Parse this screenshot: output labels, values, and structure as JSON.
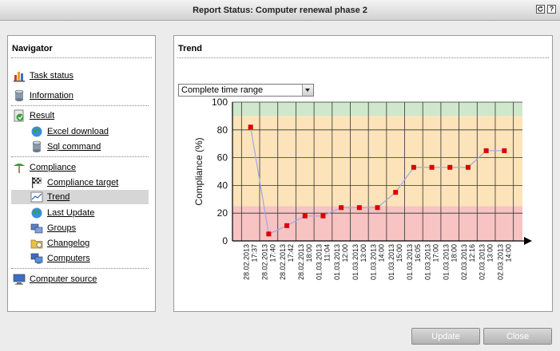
{
  "window": {
    "title": "Report Status: Computer renewal phase 2",
    "refresh_icon": "refresh-icon",
    "help_label": "?"
  },
  "navigator": {
    "title": "Navigator",
    "items": [
      {
        "label": "Task status",
        "icon": "bar-chart-icon"
      },
      {
        "label": "Information",
        "icon": "database-icon"
      },
      {
        "label": "Result",
        "icon": "result-icon"
      },
      {
        "label": "Excel download",
        "icon": "globe-icon"
      },
      {
        "label": "Sql command",
        "icon": "database-icon"
      },
      {
        "label": "Compliance",
        "icon": "compliance-icon"
      },
      {
        "label": "Compliance target",
        "icon": "checkered-flag-icon"
      },
      {
        "label": "Trend",
        "icon": "trend-icon",
        "selected": true
      },
      {
        "label": "Last Update",
        "icon": "globe-icon"
      },
      {
        "label": "Groups",
        "icon": "groups-icon"
      },
      {
        "label": "Changelog",
        "icon": "changelog-icon"
      },
      {
        "label": "Computers",
        "icon": "computers-icon"
      },
      {
        "label": "Computer source",
        "icon": "computer-icon"
      }
    ]
  },
  "trend": {
    "title": "Trend",
    "range_select": {
      "value": "Complete time range"
    }
  },
  "buttons": {
    "update": "Update",
    "close": "Close"
  },
  "colors": {
    "red_zone": "#f7c3c3",
    "orange_zone": "#fde3b9",
    "green_zone": "#cfe8cb",
    "marker": "#dd0000",
    "line": "#a8a8e8"
  },
  "chart_data": {
    "type": "line",
    "ylabel": "Compliance (%)",
    "ylim": [
      0,
      100
    ],
    "yticks": [
      0,
      20,
      40,
      60,
      80,
      100
    ],
    "zones": [
      {
        "from": 0,
        "to": 25,
        "color": "red"
      },
      {
        "from": 25,
        "to": 90,
        "color": "orange"
      },
      {
        "from": 90,
        "to": 100,
        "color": "green"
      }
    ],
    "grid": true,
    "x": [
      [
        "28.02.2013",
        "17:37"
      ],
      [
        "28.02.2013",
        "17:40"
      ],
      [
        "28.02.2013",
        "17:42"
      ],
      [
        "28.02.2013",
        "18:00"
      ],
      [
        "01.03.2013",
        "11:04"
      ],
      [
        "01.03.2013",
        "12:00"
      ],
      [
        "01.03.2013",
        "13:00"
      ],
      [
        "01.03.2013",
        "14:00"
      ],
      [
        "01.03.2013",
        "15:00"
      ],
      [
        "01.03.2013",
        "16:05"
      ],
      [
        "01.03.2013",
        "17:00"
      ],
      [
        "01.03.2013",
        "18:00"
      ],
      [
        "02.03.2013",
        "12:16"
      ],
      [
        "02.03.2013",
        "13:00"
      ],
      [
        "02.03.2013",
        "14:00"
      ]
    ],
    "series": [
      {
        "values": [
          82,
          5,
          11,
          18,
          18,
          24,
          24,
          24,
          35,
          53,
          53,
          53,
          53,
          65,
          65
        ]
      }
    ]
  }
}
